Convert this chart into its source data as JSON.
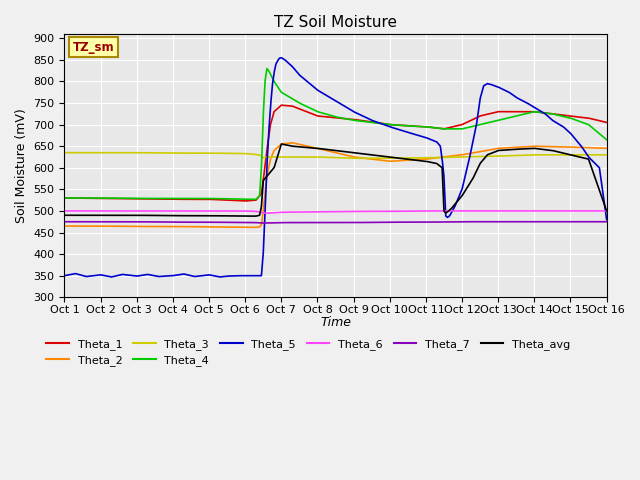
{
  "title": "TZ Soil Moisture",
  "xlabel": "Time",
  "ylabel": "Soil Moisture (mV)",
  "ylim": [
    300,
    910
  ],
  "yticks": [
    300,
    350,
    400,
    450,
    500,
    550,
    600,
    650,
    700,
    750,
    800,
    850,
    900
  ],
  "x_labels": [
    "Oct 1",
    "Oct 2",
    "Oct 3",
    "Oct 4",
    "Oct 5",
    "Oct 6",
    "Oct 7",
    "Oct 8",
    "Oct 9",
    "Oct 10",
    "Oct 11",
    "Oct 12",
    "Oct 13",
    "Oct 14",
    "Oct 15",
    "Oct 16"
  ],
  "legend_label": "TZ_sm",
  "fig_bg": "#f0f0f0",
  "axes_bg": "#e8e8e8",
  "grid_color": "#ffffff",
  "colors": {
    "Theta_1": "#dd0000",
    "Theta_2": "#ff8800",
    "Theta_3": "#cccc00",
    "Theta_4": "#00cc00",
    "Theta_5": "#0000cc",
    "Theta_6": "#ff44ff",
    "Theta_7": "#8800bb",
    "Theta_avg": "#000000"
  }
}
